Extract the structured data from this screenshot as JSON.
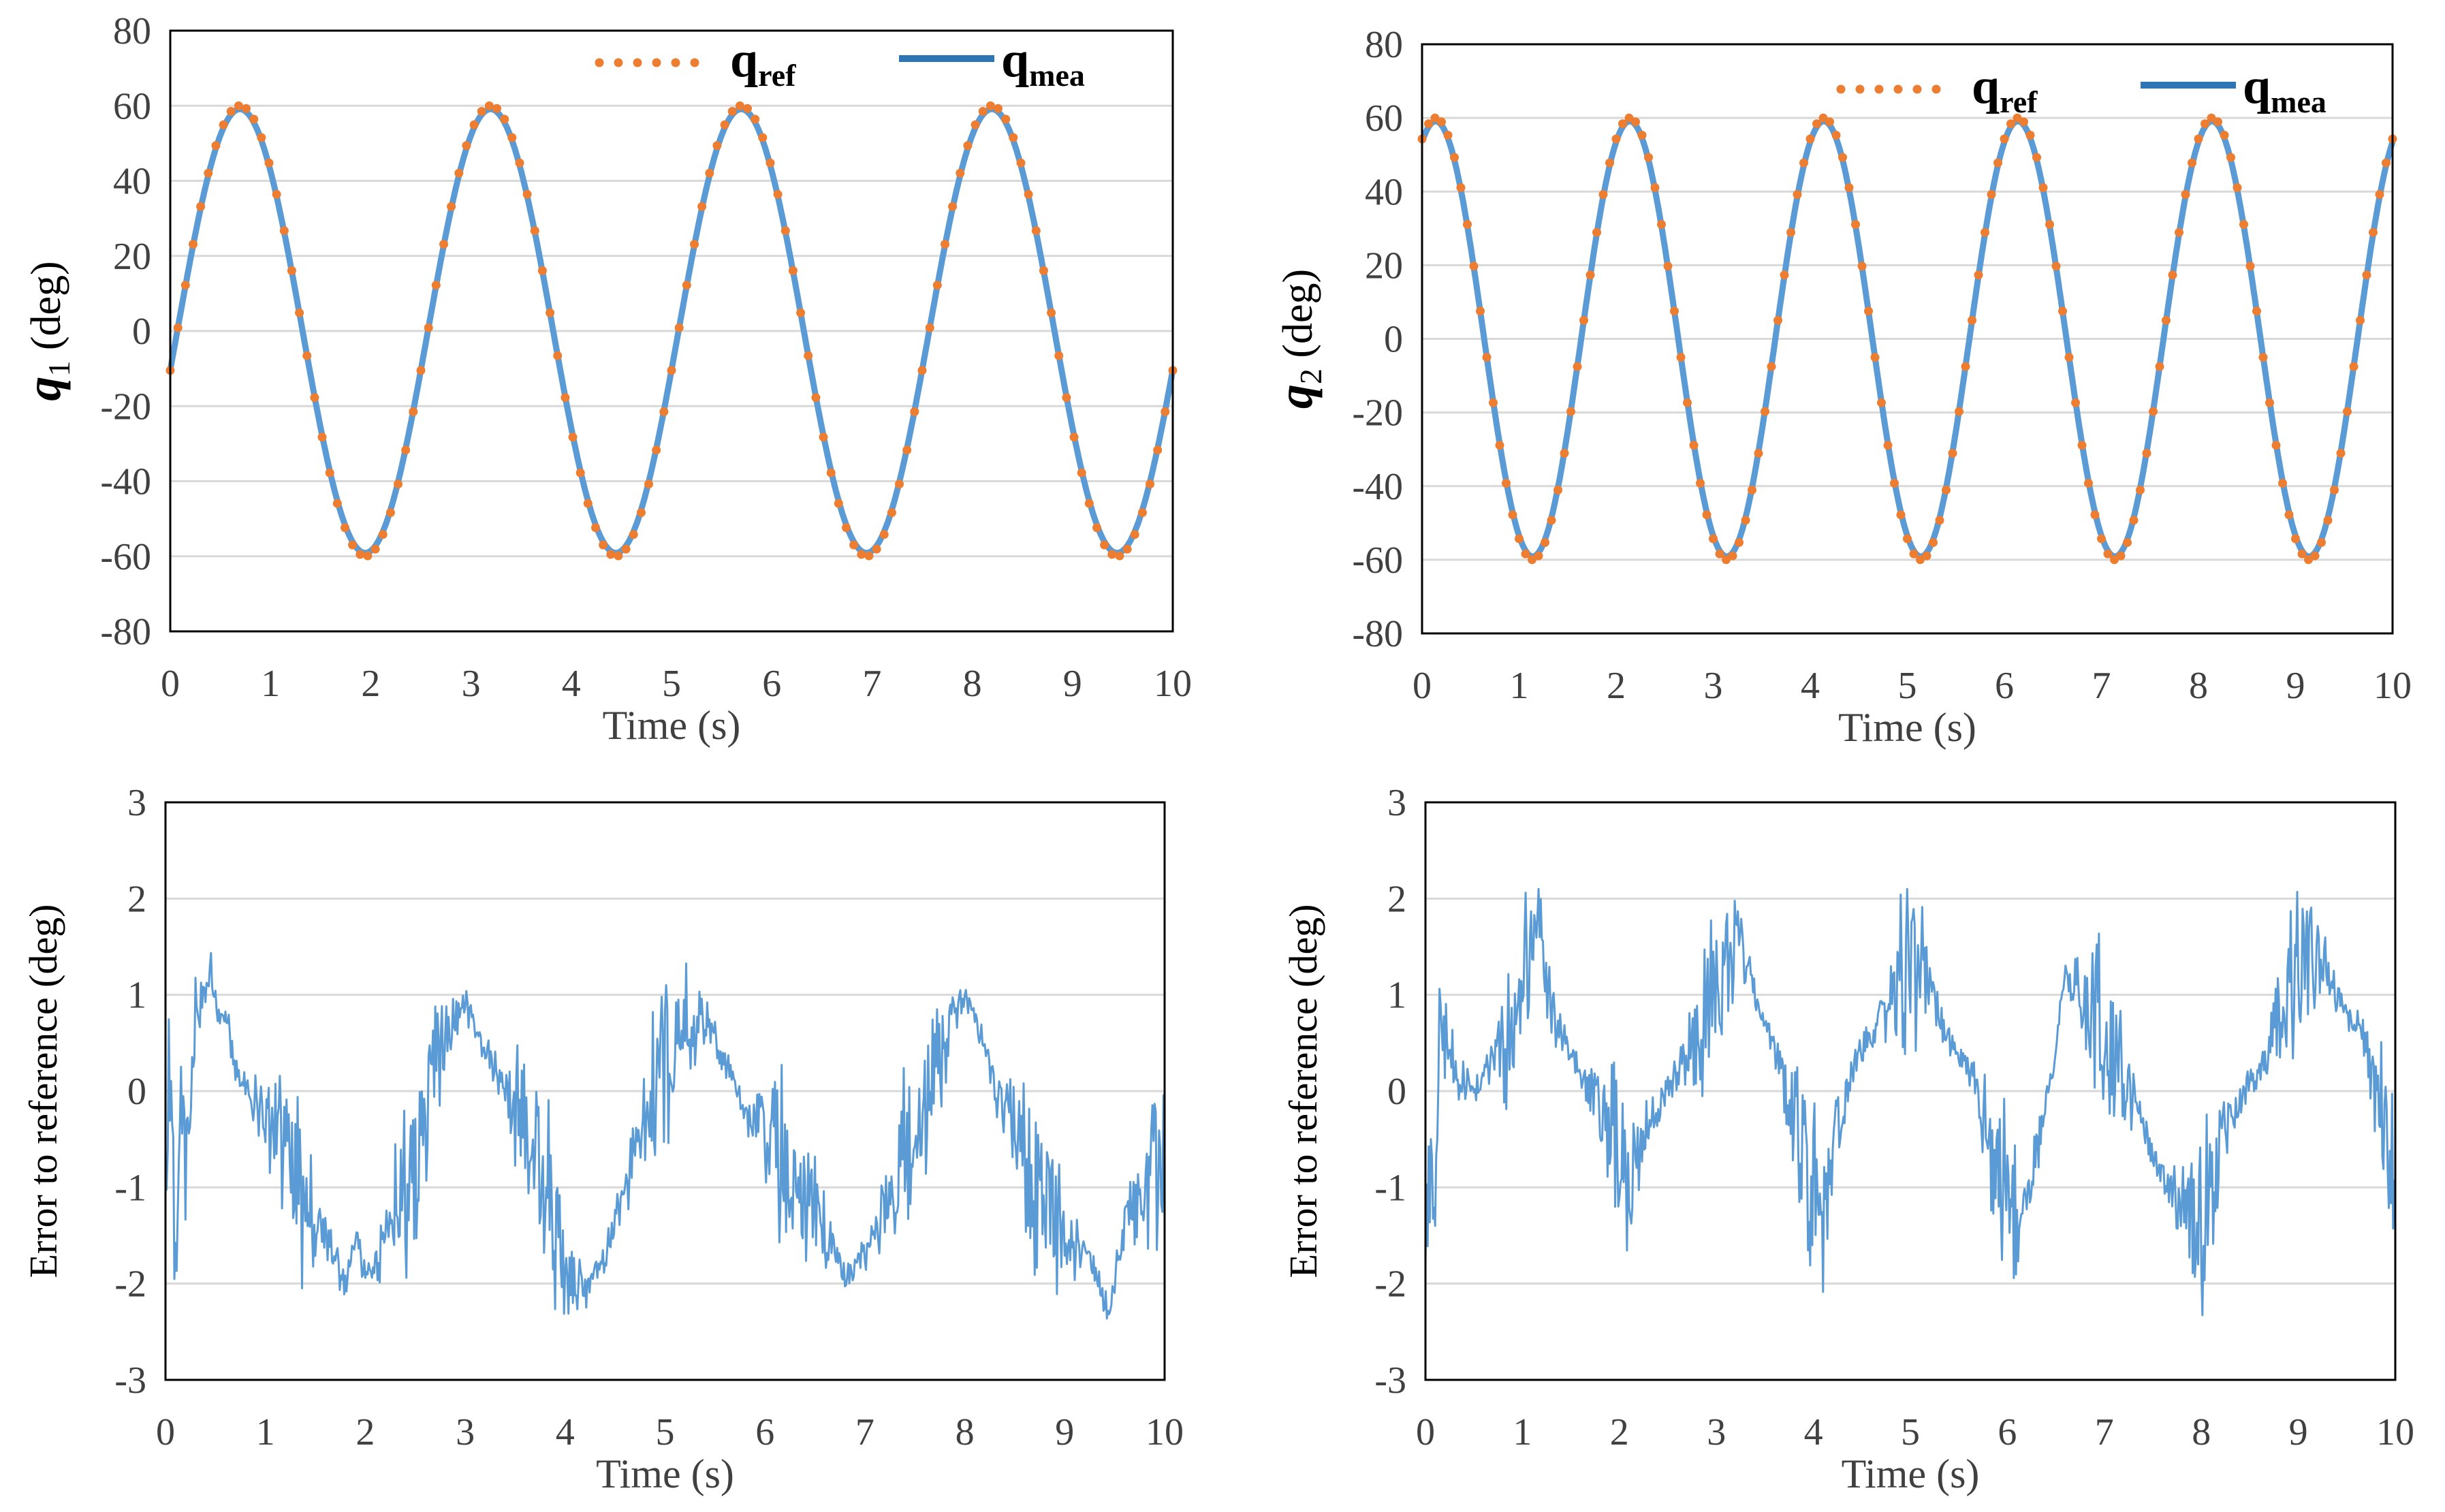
{
  "colors": {
    "ref": "#ED7D31",
    "mea": "#2E75B6",
    "err": "#5B9BD5",
    "grid": "#D9D9D9",
    "frame": "#000000"
  },
  "chart_data": [
    {
      "type": "line",
      "id": "q1",
      "title": "",
      "ylabel_symbol": "q",
      "ylabel_sub": "1",
      "ylabel_unit": " (deg)",
      "xlabel": "Time (s)",
      "xlim": [
        0,
        10
      ],
      "ylim": [
        -80,
        80
      ],
      "xticks": [
        0,
        1,
        2,
        3,
        4,
        5,
        6,
        7,
        8,
        9,
        10
      ],
      "yticks": [
        -80,
        -60,
        -40,
        -20,
        0,
        20,
        40,
        60,
        80
      ],
      "legend": [
        {
          "name": "q",
          "sub": "ref",
          "style": "dotted"
        },
        {
          "name": "q",
          "sub": "mea",
          "style": "solid"
        }
      ],
      "signal": {
        "amplitude": 60,
        "period_s": 2.5,
        "phase_s": 0.07,
        "form": "A*sin(2*pi*(t-phase)/period)"
      },
      "series": [
        {
          "name": "q_ref",
          "x": [
            0,
            0.36,
            0.695,
            1.32,
            1.945,
            2.57,
            3.195,
            3.82,
            4.445,
            5.07,
            5.695,
            6.32,
            6.945,
            7.57,
            8.195,
            8.82,
            9.445,
            10
          ],
          "y": [
            -10,
            40,
            60,
            0,
            -60,
            0,
            60,
            0,
            -60,
            0,
            60,
            0,
            -60,
            0,
            60,
            0,
            -60,
            -10
          ]
        },
        {
          "name": "q_mea",
          "x": [
            0,
            0.36,
            0.695,
            1.32,
            1.945,
            2.57,
            3.195,
            3.82,
            4.445,
            5.07,
            5.695,
            6.32,
            6.945,
            7.57,
            8.195,
            8.82,
            9.445,
            10
          ],
          "y": [
            -10,
            40,
            60,
            0,
            -60,
            0,
            60,
            0,
            -60,
            0,
            60,
            0,
            -60,
            0,
            60,
            0,
            -60,
            -10
          ]
        }
      ]
    },
    {
      "type": "line",
      "id": "q2",
      "title": "",
      "ylabel_symbol": "q",
      "ylabel_sub": "2",
      "ylabel_unit": " (deg)",
      "xlabel": "Time (s)",
      "xlim": [
        0,
        10
      ],
      "ylim": [
        -80,
        80
      ],
      "xticks": [
        0,
        1,
        2,
        3,
        4,
        5,
        6,
        7,
        8,
        9,
        10
      ],
      "yticks": [
        -80,
        -60,
        -40,
        -20,
        0,
        20,
        40,
        60,
        80
      ],
      "legend": [
        {
          "name": "q",
          "sub": "ref",
          "style": "dotted"
        },
        {
          "name": "q",
          "sub": "mea",
          "style": "solid"
        }
      ],
      "signal": {
        "amplitude": 60,
        "period_s": 2.0,
        "phase_s": -0.36,
        "form": "A*sin(2*pi*(t-phase)/period)"
      },
      "series": [
        {
          "name": "q_ref",
          "x": [
            0,
            0.14,
            0.64,
            1.14,
            1.64,
            2.14,
            2.64,
            3.14,
            3.64,
            4.14,
            4.64,
            5.14,
            5.64,
            6.14,
            6.64,
            7.14,
            7.64,
            8.14,
            8.64,
            9.14,
            9.64,
            10
          ],
          "y": [
            58,
            60,
            0,
            -60,
            0,
            60,
            0,
            -60,
            0,
            60,
            0,
            -60,
            0,
            60,
            0,
            -60,
            0,
            60,
            0,
            -60,
            0,
            58
          ]
        },
        {
          "name": "q_mea",
          "x": [
            0,
            0.14,
            0.64,
            1.14,
            1.64,
            2.14,
            2.64,
            3.14,
            3.64,
            4.14,
            4.64,
            5.14,
            5.64,
            6.14,
            6.64,
            7.14,
            7.64,
            8.14,
            8.64,
            9.14,
            9.64,
            10
          ],
          "y": [
            58,
            60,
            0,
            -60,
            0,
            60,
            0,
            -60,
            0,
            60,
            0,
            -60,
            0,
            60,
            0,
            -60,
            0,
            60,
            0,
            -60,
            0,
            58
          ]
        }
      ]
    },
    {
      "type": "line",
      "id": "err1",
      "title": "",
      "ylabel": "Error to reference (deg)",
      "xlabel": "Time (s)",
      "xlim": [
        0,
        10
      ],
      "ylim": [
        -3,
        3
      ],
      "xticks": [
        0,
        1,
        2,
        3,
        4,
        5,
        6,
        7,
        8,
        9,
        10
      ],
      "yticks": [
        -3,
        -2,
        -1,
        0,
        1,
        2,
        3
      ],
      "series": [
        {
          "name": "error",
          "x": [
            0,
            0.05,
            0.1,
            0.15,
            0.2,
            0.3,
            0.4,
            0.45,
            0.5,
            0.6,
            0.7,
            0.8,
            0.9,
            1.0,
            1.2,
            1.4,
            1.6,
            1.8,
            1.9,
            2.0,
            2.1,
            2.2,
            2.4,
            2.5,
            2.6,
            2.7,
            2.8,
            2.9,
            3.0,
            3.1,
            3.2,
            3.4,
            3.6,
            3.8,
            3.9,
            4.0,
            4.2,
            4.4,
            4.6,
            4.8,
            5.0,
            5.1,
            5.2,
            5.4,
            5.5,
            5.6,
            5.7,
            5.9,
            6.1,
            6.3,
            6.5,
            6.7,
            6.8,
            6.9,
            7.0,
            7.2,
            7.4,
            7.6,
            7.8,
            7.9,
            8.0,
            8.1,
            8.2,
            8.3,
            8.5,
            8.7,
            8.9,
            9.1,
            9.3,
            9.45,
            9.5,
            9.6,
            9.8,
            10.0
          ],
          "y": [
            -0.8,
            0.0,
            -2.2,
            0.5,
            -1.0,
            0.8,
            1.1,
            1.3,
            0.9,
            0.8,
            0.3,
            0.0,
            -0.2,
            -0.3,
            -0.8,
            -1.2,
            -1.5,
            -2.0,
            -1.5,
            -2.0,
            -1.8,
            -1.4,
            -1.0,
            -1.3,
            -0.2,
            0.2,
            0.5,
            0.8,
            0.9,
            0.7,
            0.4,
            0.0,
            -0.3,
            -0.8,
            -1.5,
            -1.8,
            -2.1,
            -1.7,
            -1.0,
            -0.3,
            0.4,
            0.6,
            0.7,
            0.8,
            0.6,
            0.3,
            0.0,
            -0.3,
            -0.6,
            -0.9,
            -1.3,
            -1.6,
            -2.0,
            -1.8,
            -1.7,
            -1.2,
            -0.6,
            0.0,
            0.5,
            0.8,
            1.0,
            0.8,
            0.4,
            0.0,
            -0.3,
            -0.9,
            -1.3,
            -1.6,
            -1.8,
            -2.4,
            -1.9,
            -1.4,
            -1.0,
            -0.6
          ]
        }
      ]
    },
    {
      "type": "line",
      "id": "err2",
      "title": "",
      "ylabel": "Error to reference (deg)",
      "xlabel": "Time (s)",
      "xlim": [
        0,
        10
      ],
      "ylim": [
        -3,
        3
      ],
      "xticks": [
        0,
        1,
        2,
        3,
        4,
        5,
        6,
        7,
        8,
        9,
        10
      ],
      "yticks": [
        -3,
        -2,
        -1,
        0,
        1,
        2,
        3
      ],
      "series": [
        {
          "name": "error",
          "x": [
            0,
            0.05,
            0.1,
            0.15,
            0.3,
            0.5,
            0.7,
            0.9,
            1.0,
            1.1,
            1.15,
            1.3,
            1.5,
            1.7,
            1.9,
            2.0,
            2.1,
            2.3,
            2.6,
            2.8,
            3.0,
            3.1,
            3.2,
            3.4,
            3.6,
            3.8,
            4.0,
            4.1,
            4.2,
            4.4,
            4.6,
            4.8,
            5.0,
            5.1,
            5.3,
            5.6,
            5.8,
            6.0,
            6.1,
            6.3,
            6.5,
            6.6,
            6.8,
            7.0,
            7.2,
            7.4,
            7.6,
            7.8,
            8.0,
            8.1,
            8.3,
            8.5,
            8.7,
            8.9,
            9.0,
            9.1,
            9.3,
            9.5,
            9.7,
            9.9,
            10.0
          ],
          "y": [
            -1.2,
            -1.0,
            -1.6,
            0.6,
            0.2,
            0.0,
            0.4,
            0.6,
            1.0,
            1.6,
            1.9,
            0.8,
            0.4,
            0.1,
            -0.5,
            -0.8,
            -1.1,
            -0.4,
            0.2,
            0.6,
            1.0,
            1.4,
            1.6,
            1.0,
            0.4,
            -0.2,
            -1.0,
            -1.2,
            -0.6,
            0.2,
            0.6,
            1.0,
            1.3,
            1.1,
            0.7,
            0.2,
            -0.4,
            -1.2,
            -1.6,
            -0.6,
            0.4,
            1.2,
            0.9,
            0.6,
            0.2,
            -0.4,
            -0.9,
            -1.2,
            -1.5,
            -0.9,
            -0.3,
            0.1,
            0.4,
            0.9,
            1.2,
            1.5,
            1.2,
            0.8,
            0.6,
            -0.4,
            -1.3
          ]
        }
      ]
    }
  ]
}
